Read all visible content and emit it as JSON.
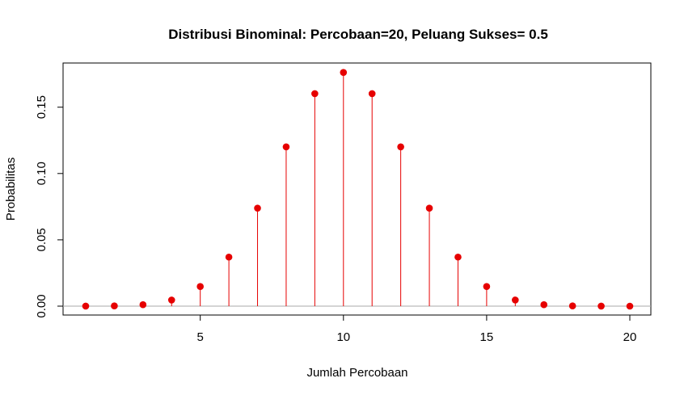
{
  "chart_data": {
    "type": "scatter",
    "style": "stem",
    "title": "Distribusi Binominal: Percobaan=20, Peluang Sukses= 0.5",
    "xlabel": "Jumlah Percobaan",
    "ylabel": "Probabilitas",
    "xlim": [
      1,
      20
    ],
    "ylim": [
      0,
      0.176
    ],
    "x_ticks": [
      "5",
      "10",
      "15",
      "20"
    ],
    "y_ticks": [
      "0.00",
      "0.05",
      "0.10",
      "0.15"
    ],
    "grid": false,
    "legend": "none",
    "series": [
      {
        "color": "#e60000",
        "x": [
          1,
          2,
          3,
          4,
          5,
          6,
          7,
          8,
          9,
          10,
          11,
          12,
          13,
          14,
          15,
          16,
          17,
          18,
          19,
          20
        ],
        "values": [
          1.91e-05,
          0.000181,
          0.00109,
          0.00462,
          0.0148,
          0.037,
          0.0739,
          0.1201,
          0.1602,
          0.1762,
          0.1602,
          0.1201,
          0.0739,
          0.037,
          0.0148,
          0.00462,
          0.00109,
          0.000181,
          1.91e-05,
          9.5e-07
        ]
      }
    ],
    "baseline_color": "#aaaaaa"
  }
}
